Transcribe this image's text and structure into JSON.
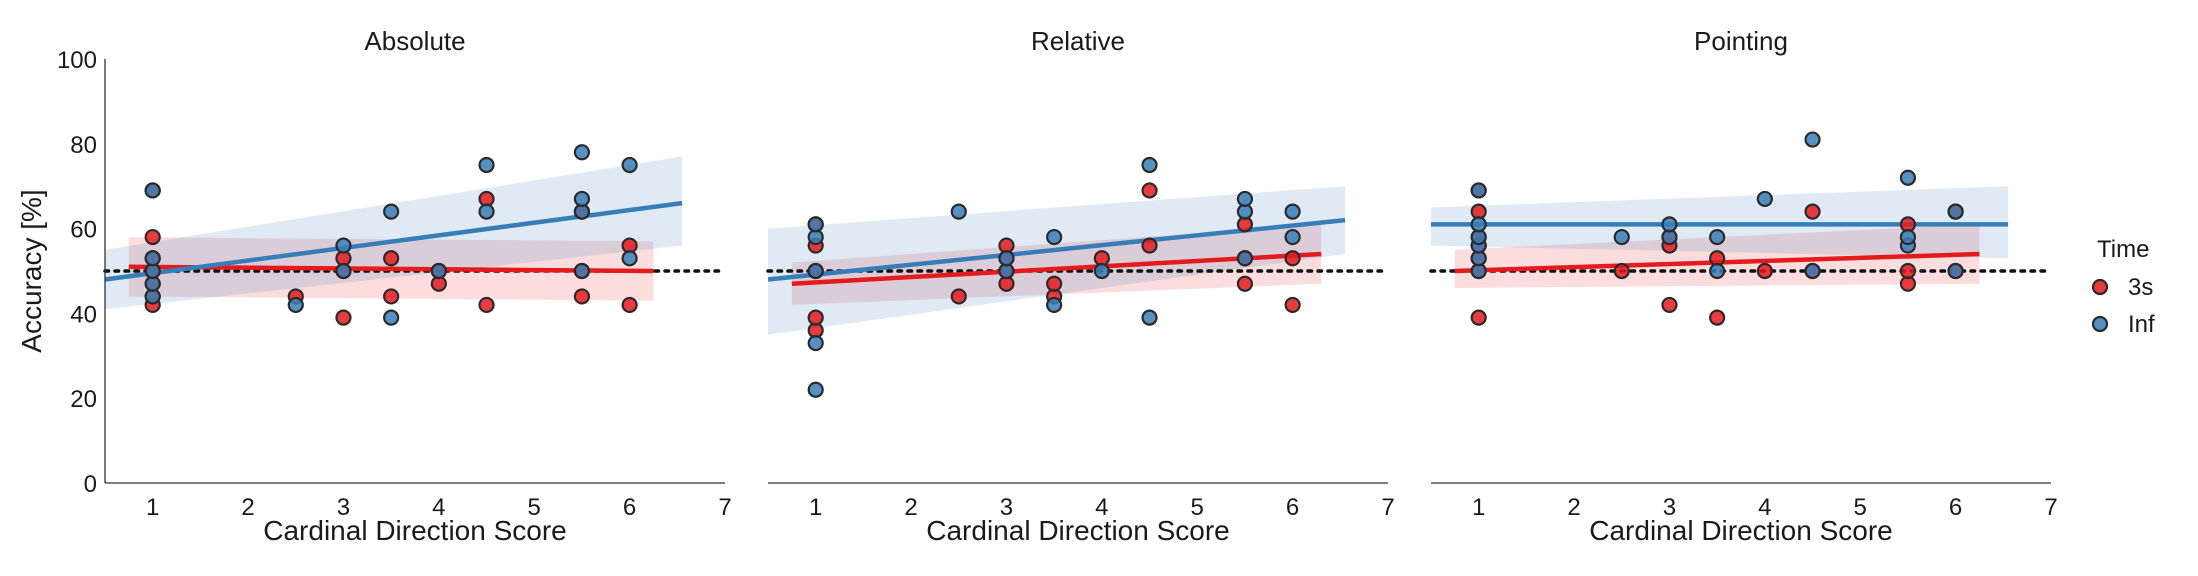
{
  "chart_data": [
    {
      "type": "scatter",
      "title": "Absolute",
      "xlabel": "Cardinal Direction Score",
      "ylabel": "Accuracy [%]",
      "xlim": [
        0.5,
        7
      ],
      "ylim": [
        0,
        100
      ],
      "xticks": [
        "1",
        "2",
        "3",
        "4",
        "5",
        "6",
        "7"
      ],
      "yticks": [
        "0",
        "20",
        "40",
        "60",
        "80",
        "100"
      ],
      "chance_level": 50,
      "series": [
        {
          "name": "3s",
          "color": "#e41a1c",
          "points": [
            [
              1,
              42
            ],
            [
              1,
              44
            ],
            [
              1,
              47
            ],
            [
              1,
              50
            ],
            [
              1,
              53
            ],
            [
              1,
              58
            ],
            [
              1,
              69
            ],
            [
              2.5,
              44
            ],
            [
              3,
              39
            ],
            [
              3,
              50
            ],
            [
              3,
              53
            ],
            [
              3.5,
              44
            ],
            [
              3.5,
              53
            ],
            [
              4,
              47
            ],
            [
              4,
              50
            ],
            [
              4.5,
              42
            ],
            [
              4.5,
              67
            ],
            [
              5.5,
              44
            ],
            [
              5.5,
              50
            ],
            [
              5.5,
              64
            ],
            [
              6,
              42
            ],
            [
              6,
              56
            ]
          ],
          "fit": {
            "x": [
              0.75,
              6.25
            ],
            "y": [
              51,
              50
            ]
          },
          "ci_band": {
            "x": [
              0.75,
              6.25
            ],
            "lower": [
              44,
              43
            ],
            "upper": [
              58,
              57
            ]
          }
        },
        {
          "name": "Inf",
          "color": "#377eb8",
          "points": [
            [
              1,
              44
            ],
            [
              1,
              47
            ],
            [
              1,
              50
            ],
            [
              1,
              53
            ],
            [
              1,
              69
            ],
            [
              2.5,
              42
            ],
            [
              3,
              50
            ],
            [
              3,
              56
            ],
            [
              3.5,
              39
            ],
            [
              3.5,
              64
            ],
            [
              4,
              50
            ],
            [
              4.5,
              64
            ],
            [
              4.5,
              75
            ],
            [
              5.5,
              50
            ],
            [
              5.5,
              64
            ],
            [
              5.5,
              67
            ],
            [
              5.5,
              78
            ],
            [
              6,
              53
            ],
            [
              6,
              75
            ]
          ],
          "fit": {
            "x": [
              0.5,
              6.55
            ],
            "y": [
              48,
              66
            ]
          },
          "ci_band": {
            "x": [
              0.5,
              6.55
            ],
            "lower": [
              41,
              56
            ],
            "upper": [
              55,
              77
            ]
          }
        }
      ]
    },
    {
      "type": "scatter",
      "title": "Relative",
      "xlabel": "Cardinal Direction Score",
      "ylabel": "",
      "xlim": [
        0.5,
        7
      ],
      "ylim": [
        0,
        100
      ],
      "xticks": [
        "1",
        "2",
        "3",
        "4",
        "5",
        "6",
        "7"
      ],
      "chance_level": 50,
      "series": [
        {
          "name": "3s",
          "color": "#e41a1c",
          "points": [
            [
              1,
              36
            ],
            [
              1,
              39
            ],
            [
              1,
              50
            ],
            [
              1,
              56
            ],
            [
              1,
              61
            ],
            [
              2.5,
              44
            ],
            [
              3,
              47
            ],
            [
              3,
              50
            ],
            [
              3,
              53
            ],
            [
              3,
              56
            ],
            [
              3.5,
              44
            ],
            [
              3.5,
              47
            ],
            [
              4,
              53
            ],
            [
              4.5,
              56
            ],
            [
              4.5,
              69
            ],
            [
              5.5,
              47
            ],
            [
              5.5,
              53
            ],
            [
              5.5,
              61
            ],
            [
              6,
              42
            ],
            [
              6,
              53
            ]
          ],
          "fit": {
            "x": [
              0.75,
              6.3
            ],
            "y": [
              47,
              54
            ]
          },
          "ci_band": {
            "x": [
              0.75,
              6.3
            ],
            "lower": [
              42,
              47
            ],
            "upper": [
              52,
              61
            ]
          }
        },
        {
          "name": "Inf",
          "color": "#377eb8",
          "points": [
            [
              1,
              22
            ],
            [
              1,
              33
            ],
            [
              1,
              50
            ],
            [
              1,
              58
            ],
            [
              1,
              61
            ],
            [
              2.5,
              64
            ],
            [
              3,
              50
            ],
            [
              3,
              53
            ],
            [
              3.5,
              42
            ],
            [
              3.5,
              58
            ],
            [
              4,
              50
            ],
            [
              4.5,
              39
            ],
            [
              4.5,
              75
            ],
            [
              5.5,
              53
            ],
            [
              5.5,
              64
            ],
            [
              5.5,
              67
            ],
            [
              6,
              58
            ],
            [
              6,
              64
            ]
          ],
          "fit": {
            "x": [
              0.5,
              6.55
            ],
            "y": [
              48,
              62
            ]
          },
          "ci_band": {
            "x": [
              0.5,
              6.55
            ],
            "lower": [
              35,
              54
            ],
            "upper": [
              60,
              70
            ]
          }
        }
      ]
    },
    {
      "type": "scatter",
      "title": "Pointing",
      "xlabel": "Cardinal Direction Score",
      "ylabel": "",
      "xlim": [
        0.5,
        7
      ],
      "ylim": [
        0,
        100
      ],
      "xticks": [
        "1",
        "2",
        "3",
        "4",
        "5",
        "6",
        "7"
      ],
      "chance_level": 50,
      "series": [
        {
          "name": "3s",
          "color": "#e41a1c",
          "points": [
            [
              1,
              39
            ],
            [
              1,
              50
            ],
            [
              1,
              53
            ],
            [
              1,
              56
            ],
            [
              1,
              58
            ],
            [
              1,
              64
            ],
            [
              1,
              69
            ],
            [
              2.5,
              50
            ],
            [
              3,
              42
            ],
            [
              3,
              56
            ],
            [
              3,
              58
            ],
            [
              3.5,
              39
            ],
            [
              3.5,
              53
            ],
            [
              4,
              50
            ],
            [
              4.5,
              50
            ],
            [
              4.5,
              64
            ],
            [
              5.5,
              47
            ],
            [
              5.5,
              50
            ],
            [
              5.5,
              61
            ],
            [
              6,
              50
            ],
            [
              6,
              64
            ]
          ],
          "fit": {
            "x": [
              0.75,
              6.25
            ],
            "y": [
              50,
              54
            ]
          },
          "ci_band": {
            "x": [
              0.75,
              6.25
            ],
            "lower": [
              46,
              47
            ],
            "upper": [
              55,
              61
            ]
          }
        },
        {
          "name": "Inf",
          "color": "#377eb8",
          "points": [
            [
              1,
              50
            ],
            [
              1,
              53
            ],
            [
              1,
              56
            ],
            [
              1,
              58
            ],
            [
              1,
              61
            ],
            [
              1,
              69
            ],
            [
              2.5,
              58
            ],
            [
              3,
              58
            ],
            [
              3,
              61
            ],
            [
              3.5,
              50
            ],
            [
              3.5,
              58
            ],
            [
              4,
              67
            ],
            [
              4.5,
              50
            ],
            [
              4.5,
              81
            ],
            [
              5.5,
              56
            ],
            [
              5.5,
              58
            ],
            [
              5.5,
              72
            ],
            [
              6,
              50
            ],
            [
              6,
              64
            ]
          ],
          "fit": {
            "x": [
              0.5,
              6.55
            ],
            "y": [
              61,
              61
            ]
          },
          "ci_band": {
            "x": [
              0.5,
              6.55
            ],
            "lower": [
              56,
              53
            ],
            "upper": [
              65,
              70
            ]
          }
        }
      ]
    }
  ],
  "legend": {
    "title": "Time",
    "entries": [
      {
        "label": "3s",
        "color": "#e41a1c"
      },
      {
        "label": "Inf",
        "color": "#377eb8"
      }
    ]
  }
}
